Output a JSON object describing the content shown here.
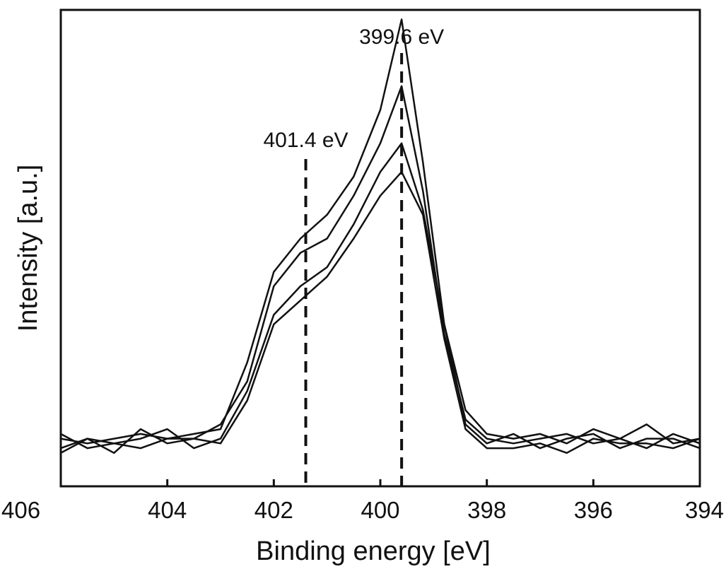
{
  "chart_data": {
    "type": "line",
    "xlabel": "Binding energy [eV]",
    "ylabel": "Intensity [a.u.]",
    "xlim": [
      406,
      394
    ],
    "x_reversed": true,
    "x_ticks": [
      406,
      404,
      402,
      400,
      398,
      396,
      394
    ],
    "x_tick_labels": [
      "406",
      "404",
      "402",
      "400",
      "398",
      "396",
      "394"
    ],
    "y_ticks_shown": false,
    "ylim": [
      0,
      1.0
    ],
    "grid": false,
    "legend": "none",
    "line_color": "#111111",
    "annotations": [
      {
        "label": "399.6 eV",
        "x": 399.6,
        "style": "dashed vertical line"
      },
      {
        "label": "401.4 eV",
        "x": 401.4,
        "style": "dashed vertical line"
      }
    ],
    "x": [
      406,
      405.5,
      405,
      404.5,
      404,
      403.5,
      403,
      402.5,
      402,
      401.5,
      401,
      400.5,
      400,
      399.6,
      399.2,
      398.8,
      398.4,
      398,
      397.5,
      397,
      396.5,
      396,
      395.5,
      395,
      394.5,
      394
    ],
    "series": [
      {
        "values": [
          0.1,
          0.09,
          0.1,
          0.11,
          0.1,
          0.11,
          0.12,
          0.26,
          0.45,
          0.52,
          0.57,
          0.65,
          0.79,
          0.98,
          0.68,
          0.34,
          0.16,
          0.11,
          0.1,
          0.11,
          0.09,
          0.12,
          0.1,
          0.13,
          0.09,
          0.1
        ]
      },
      {
        "values": [
          0.08,
          0.1,
          0.07,
          0.12,
          0.09,
          0.1,
          0.13,
          0.22,
          0.42,
          0.49,
          0.52,
          0.61,
          0.72,
          0.84,
          0.62,
          0.32,
          0.14,
          0.1,
          0.09,
          0.1,
          0.11,
          0.09,
          0.1,
          0.08,
          0.11,
          0.09
        ]
      },
      {
        "values": [
          0.11,
          0.08,
          0.09,
          0.1,
          0.12,
          0.08,
          0.1,
          0.2,
          0.36,
          0.42,
          0.46,
          0.55,
          0.66,
          0.72,
          0.58,
          0.34,
          0.13,
          0.09,
          0.11,
          0.08,
          0.1,
          0.11,
          0.08,
          0.1,
          0.1,
          0.08
        ]
      },
      {
        "values": [
          0.07,
          0.1,
          0.09,
          0.08,
          0.1,
          0.1,
          0.09,
          0.18,
          0.34,
          0.39,
          0.44,
          0.52,
          0.61,
          0.66,
          0.57,
          0.31,
          0.12,
          0.08,
          0.08,
          0.09,
          0.07,
          0.1,
          0.09,
          0.09,
          0.08,
          0.1
        ]
      }
    ]
  }
}
